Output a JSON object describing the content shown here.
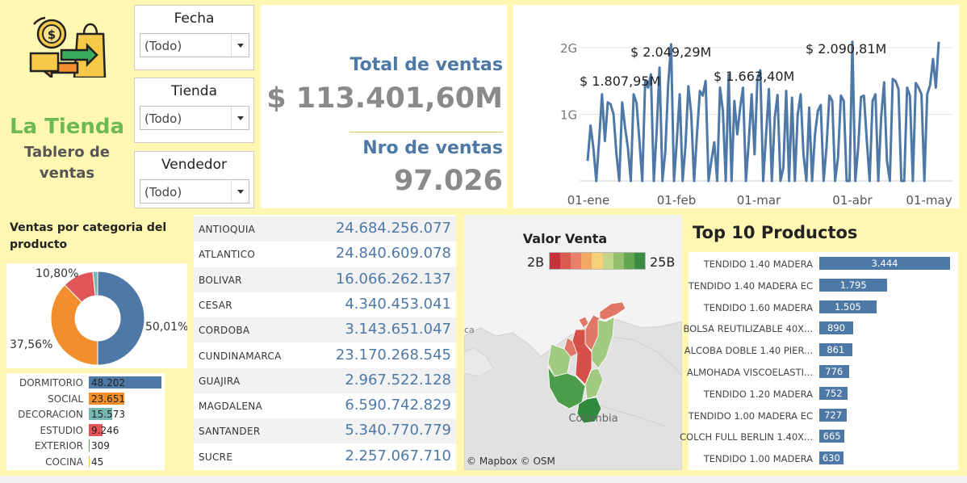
{
  "brand": {
    "title": "La Tienda",
    "subtitle_line1": "Tablero de",
    "subtitle_line2": "ventas"
  },
  "filters": [
    {
      "label": "Fecha",
      "value": "(Todo)"
    },
    {
      "label": "Tienda",
      "value": "(Todo)"
    },
    {
      "label": "Vendedor",
      "value": "(Todo)"
    }
  ],
  "kpis": {
    "total_label": "Total de ventas",
    "total_value": "$ 113.401,60M",
    "count_label": "Nro de ventas",
    "count_value": "97.026"
  },
  "line_chart": {
    "chart_data": {
      "type": "line",
      "y_ticks": [
        "1G",
        "2G"
      ],
      "x_ticks": [
        "01-ene",
        "01-feb",
        "01-mar",
        "01-abr",
        "01-may"
      ],
      "ylim": [
        0,
        2.4
      ],
      "annotations": [
        {
          "text": "$ 1.807,95M",
          "value": 1.80795
        },
        {
          "text": "$ 2.049,29M",
          "value": 2.04929
        },
        {
          "text": "$ 1.663,40M",
          "value": 1.6634
        },
        {
          "text": "$ 2.090,81M",
          "value": 2.09081
        }
      ],
      "values": [
        0.3,
        0.83,
        0.5,
        0.0,
        0.62,
        1.3,
        0.6,
        1.18,
        1.15,
        1.0,
        0.4,
        0.0,
        1.18,
        0.8,
        0.5,
        0.0,
        1.3,
        1.17,
        0.6,
        0.0,
        1.5,
        1.4,
        1.6,
        0.0,
        0.76,
        1.7,
        0.0,
        0.45,
        1.45,
        2.05,
        0.0,
        0.6,
        1.3,
        0.0,
        0.52,
        1.42,
        1.0,
        0.0,
        0.7,
        1.35,
        1.28,
        1.5,
        0.0,
        0.3,
        0.58,
        0.0,
        1.4,
        1.05,
        0.0,
        1.6,
        0.0,
        1.2,
        0.7,
        1.1,
        1.4,
        0.0,
        0.6,
        1.3,
        0.4,
        1.54,
        1.66,
        0.0,
        0.7,
        1.38,
        0.0,
        0.95,
        1.29,
        0.0,
        0.2,
        1.35,
        0.0,
        1.25,
        0.0,
        1.0,
        1.3,
        0.4,
        0.0,
        1.1,
        0.0,
        0.7,
        1.05,
        1.14,
        0.0,
        0.5,
        1.28,
        1.2,
        0.0,
        0.35,
        1.28,
        1.2,
        0.0,
        0.0,
        2.09,
        0.0,
        0.5,
        1.26,
        1.28,
        0.6,
        0.0,
        1.2,
        1.3,
        0.0,
        0.96,
        1.48,
        0.3,
        0.0,
        1.53,
        1.5,
        1.38,
        0.0,
        0.0,
        1.4,
        1.28,
        0.0,
        1.47,
        1.4,
        1.3,
        0.0,
        1.3,
        1.44,
        1.83,
        1.4,
        2.09
      ]
    }
  },
  "category": {
    "title": "Ventas por categoria del producto",
    "chart_data": {
      "type": "pie",
      "slices": [
        {
          "value": 50.01,
          "label": "50,01%",
          "color": "#4e79a7"
        },
        {
          "value": 37.56,
          "label": "37,56%",
          "color": "#f28e2b"
        },
        {
          "value": 10.8,
          "label": "10,80%",
          "color": "#e15759"
        },
        {
          "value": 1.63,
          "label": "",
          "color": "#76b7b2"
        }
      ]
    },
    "bars": [
      {
        "name": "DORMITORIO",
        "value": 48202,
        "label": "48.202",
        "color": "#4e79a7"
      },
      {
        "name": "SOCIAL",
        "value": 23651,
        "label": "23.651",
        "color": "#f28e2b"
      },
      {
        "name": "DECORACION",
        "value": 15573,
        "label": "15.573",
        "color": "#76b7b2"
      },
      {
        "name": "ESTUDIO",
        "value": 9246,
        "label": "9.246",
        "color": "#e15759"
      },
      {
        "name": "EXTERIOR",
        "value": 309,
        "label": "309",
        "color": "#59a14f"
      },
      {
        "name": "COCINA",
        "value": 45,
        "label": "45",
        "color": "#edc948"
      }
    ]
  },
  "departments": [
    {
      "name": "ANTIOQUIA",
      "value": "24.684.256.077"
    },
    {
      "name": "ATLANTICO",
      "value": "24.840.609.078"
    },
    {
      "name": "BOLIVAR",
      "value": "16.066.262.137"
    },
    {
      "name": "CESAR",
      "value": "4.340.453.041"
    },
    {
      "name": "CORDOBA",
      "value": "3.143.651.047"
    },
    {
      "name": "CUNDINAMARCA",
      "value": "23.170.268.545"
    },
    {
      "name": "GUAJIRA",
      "value": "2.967.522.128"
    },
    {
      "name": "MAGDALENA",
      "value": "6.590.742.829"
    },
    {
      "name": "SANTANDER",
      "value": "5.340.770.779"
    },
    {
      "name": "SUCRE",
      "value": "2.257.067.710"
    }
  ],
  "map": {
    "title": "Valor Venta",
    "legend_min": "2B",
    "legend_max": "25B",
    "legend_colors": [
      "#c9303e",
      "#dc5a4d",
      "#e8806a",
      "#f3a964",
      "#f7d07a",
      "#c1d68a",
      "#94c06d",
      "#62a750",
      "#3a8c42"
    ],
    "country_label": "Colombia",
    "edge_label": "ca",
    "attribution": "© Mapbox © OSM",
    "fill_colors": {
      "very_low": "#d6504a",
      "low": "#e07667",
      "mid": "#9fca80",
      "high": "#4c9d4a",
      "top": "#2f8a3e"
    }
  },
  "top_products": {
    "title": "Top 10 Productos",
    "items": [
      {
        "name": "TENDIDO 1.40 MADERA",
        "value": 3444,
        "label": "3.444"
      },
      {
        "name": "TENDIDO 1.40 MADERA EC",
        "value": 1795,
        "label": "1.795"
      },
      {
        "name": "TENDIDO 1.60 MADERA",
        "value": 1505,
        "label": "1.505"
      },
      {
        "name": "BOLSA REUTILIZABLE 40X...",
        "value": 890,
        "label": "890"
      },
      {
        "name": "ALCOBA DOBLE 1.40 PIER...",
        "value": 861,
        "label": "861"
      },
      {
        "name": "ALMOHADA VISCOELASTI...",
        "value": 776,
        "label": "776"
      },
      {
        "name": "TENDIDO 1.20 MADERA",
        "value": 752,
        "label": "752"
      },
      {
        "name": "TENDIDO 1.00 MADERA EC",
        "value": 727,
        "label": "727"
      },
      {
        "name": "COLCH FULL BERLIN 1.40X...",
        "value": 665,
        "label": "665"
      },
      {
        "name": "TENDIDO 1.00 MADERA",
        "value": 630,
        "label": "630"
      }
    ]
  }
}
